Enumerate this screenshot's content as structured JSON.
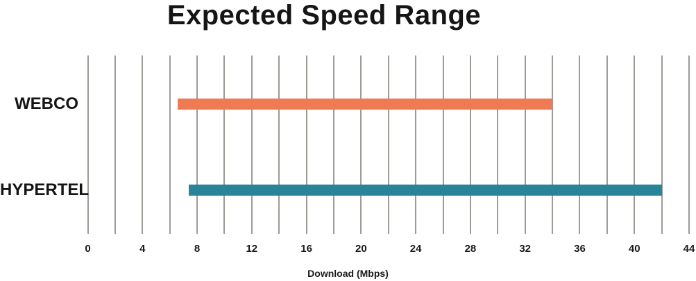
{
  "chart_data": {
    "type": "bar",
    "subtype": "horizontal-range-bar",
    "title": "Expected Speed Range",
    "xlabel": "Download (Mbps)",
    "ylabel": "",
    "categories": [
      "WEBCO",
      "HYPERTEL"
    ],
    "series": [
      {
        "name": "WEBCO",
        "range_mbps": [
          6.6,
          34
        ],
        "color": "#EF7B55"
      },
      {
        "name": "HYPERTEL",
        "range_mbps": [
          7.4,
          42
        ],
        "color": "#2A8499"
      }
    ],
    "xlim": [
      0,
      44
    ],
    "x_major_ticks": [
      0,
      4,
      8,
      12,
      16,
      20,
      24,
      28,
      32,
      36,
      40,
      44
    ],
    "x_gridline_step": 2,
    "grid": true,
    "gridline_color": "#9E9A96",
    "legend": "none",
    "background": "#FFFFFF",
    "text_color": "#151515"
  }
}
